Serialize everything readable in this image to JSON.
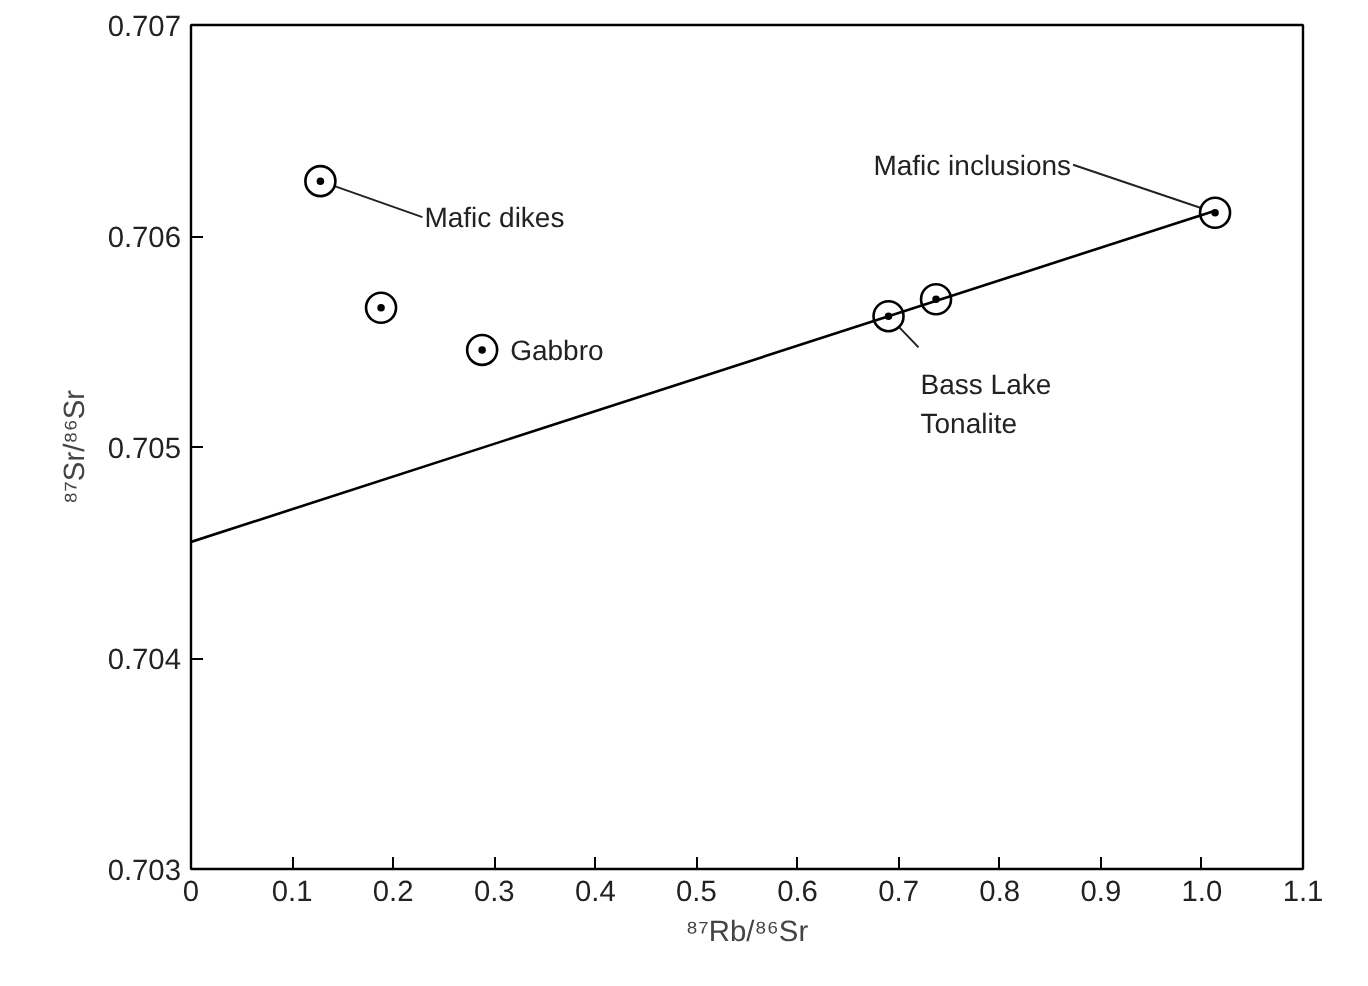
{
  "chart_data": {
    "type": "scatter",
    "xlabel": "⁸⁷Rb/⁸⁶Sr",
    "ylabel": "⁸⁷Sr/⁸⁶Sr",
    "x": [
      0.128,
      0.188,
      0.288,
      0.69,
      0.737,
      1.013
    ],
    "series": [
      {
        "color": "#000000",
        "values": [
          0.70626,
          0.70566,
          0.70546,
          0.70562,
          0.7057,
          0.70611
        ]
      },
      {
        "type": "line",
        "color": "#000000",
        "x": [
          0,
          1.013
        ],
        "values": [
          0.70455,
          0.70612
        ]
      }
    ],
    "marker": "circle",
    "grid": false,
    "xlim": [
      0,
      1.1
    ],
    "xticks": [
      0,
      0.1,
      0.2,
      0.3,
      0.4,
      0.5,
      0.6,
      0.7,
      0.8,
      0.9,
      {
        "value": 1.0,
        "label": "1.0"
      },
      1.1
    ],
    "ylim": [
      0.703,
      0.707
    ],
    "yticks": [
      0.703,
      0.704,
      0.705,
      0.706,
      0.707
    ],
    "annotations": [
      {
        "text": "Mafic dikes",
        "x": 0.128,
        "y": 0.70626
      },
      {
        "text": "Gabbro",
        "x": 0.288,
        "y": 0.70546
      },
      {
        "text": "Mafic inclusions",
        "x": 1.013,
        "y": 0.70611
      },
      {
        "text": "Bass Lake\nTonalite",
        "x": 0.69,
        "y": 0.70562
      }
    ]
  }
}
